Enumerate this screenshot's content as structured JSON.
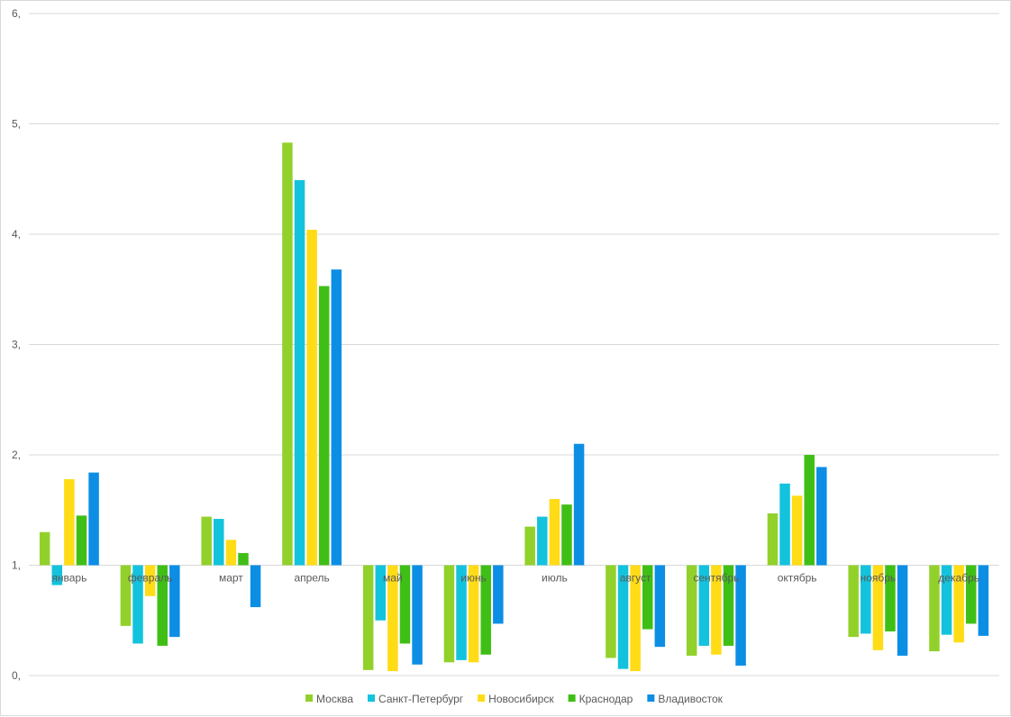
{
  "chart_data": {
    "type": "bar",
    "title": "",
    "xlabel": "",
    "ylabel": "",
    "baseline": 1,
    "ylim": [
      0,
      6
    ],
    "yticks": [
      "0,",
      "1,",
      "2,",
      "3,",
      "4,",
      "5,",
      "6,"
    ],
    "grid": true,
    "legend_position": "bottom",
    "categories": [
      "январь",
      "февраль",
      "март",
      "апрель",
      "май",
      "июнь",
      "июль",
      "август",
      "сентябрь",
      "октябрь",
      "ноябрь",
      "декабрь"
    ],
    "series": [
      {
        "name": "Москва",
        "color": "#92d12b",
        "values": [
          1.3,
          0.45,
          1.44,
          4.83,
          0.05,
          0.12,
          1.35,
          0.16,
          0.18,
          1.47,
          0.35,
          0.22
        ]
      },
      {
        "name": "Санкт-Петербург",
        "color": "#13c3dd",
        "values": [
          0.82,
          0.29,
          1.42,
          4.49,
          0.5,
          0.14,
          1.44,
          0.06,
          0.27,
          1.74,
          0.38,
          0.37
        ]
      },
      {
        "name": "Новосибирск",
        "color": "#ffdc16",
        "values": [
          1.78,
          0.72,
          1.23,
          4.04,
          0.04,
          0.12,
          1.6,
          0.04,
          0.19,
          1.63,
          0.23,
          0.3
        ]
      },
      {
        "name": "Краснодар",
        "color": "#3fbf16",
        "values": [
          1.45,
          0.27,
          1.11,
          3.53,
          0.29,
          0.19,
          1.55,
          0.42,
          0.27,
          2.0,
          0.4,
          0.47
        ]
      },
      {
        "name": "Владивосток",
        "color": "#0c8ee5",
        "values": [
          1.84,
          0.35,
          0.62,
          3.68,
          0.1,
          0.47,
          2.1,
          0.26,
          0.09,
          1.89,
          0.18,
          0.36
        ]
      }
    ]
  }
}
